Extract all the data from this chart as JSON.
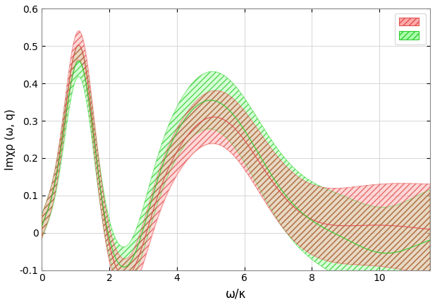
{
  "title": "",
  "xlabel": "ω/κ",
  "ylabel": "Imχρ (ω, q)",
  "xlim": [
    0,
    11.5
  ],
  "ylim": [
    -0.1,
    0.6
  ],
  "xticks": [
    0,
    2,
    4,
    6,
    8,
    10
  ],
  "yticks": [
    -0.1,
    0.0,
    0.1,
    0.2,
    0.3,
    0.4,
    0.5,
    0.6
  ],
  "red_color": "#ffaaaa",
  "red_edge": "#e05050",
  "green_color": "#aaffaa",
  "green_edge": "#30cc30",
  "background": "#ffffff",
  "grid_color": "#d0d0d0"
}
